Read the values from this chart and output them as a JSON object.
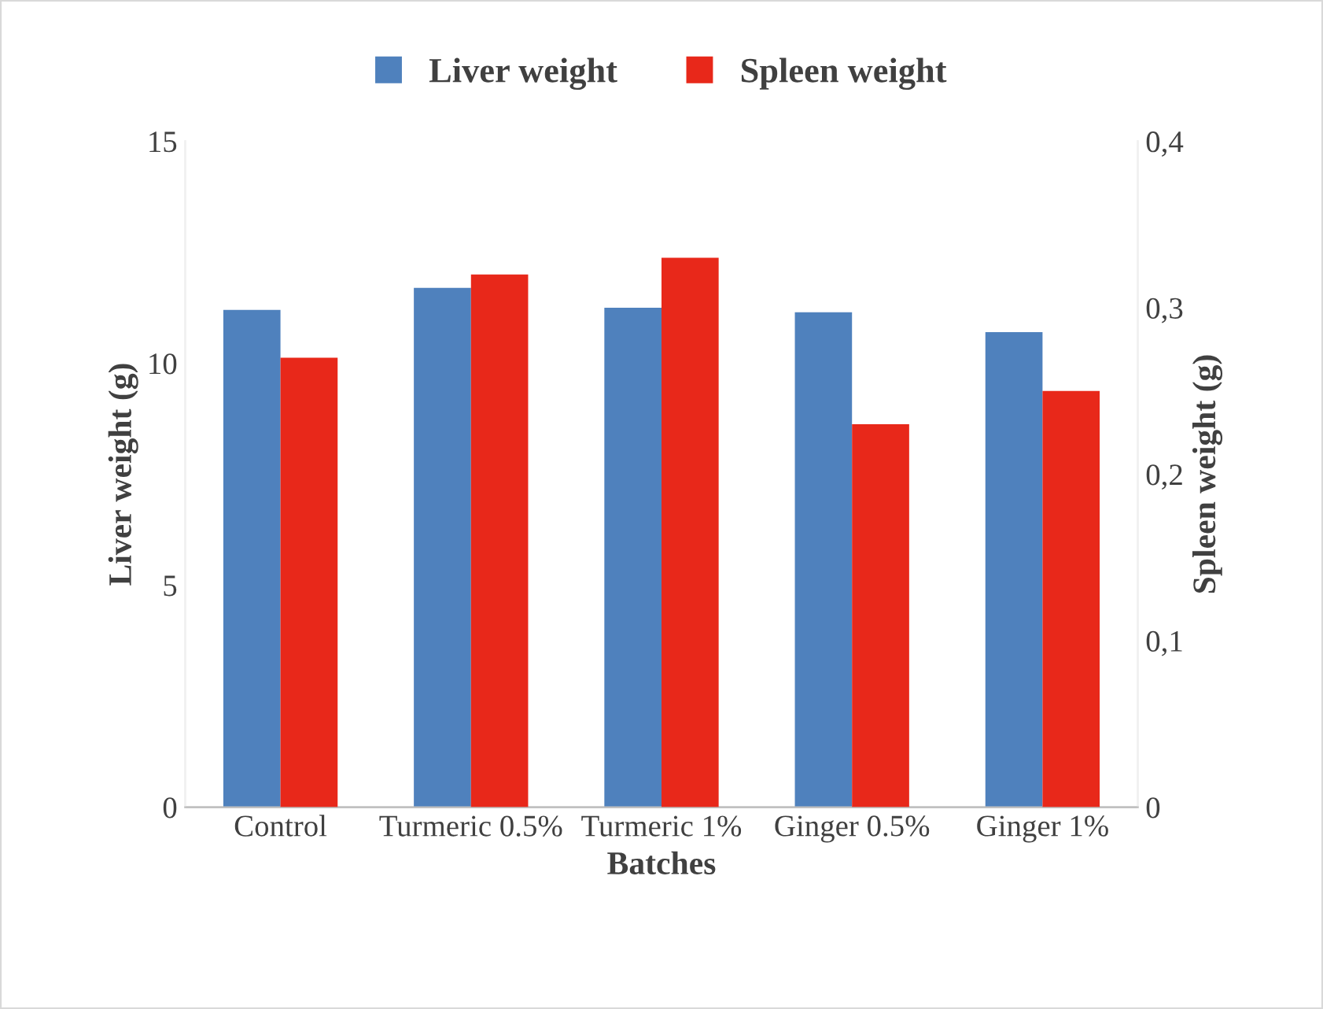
{
  "chart_data": {
    "type": "bar",
    "xlabel": "Batches",
    "ylabel": "Liver weight (g)",
    "y2label": "Spleen weight (g)",
    "categories": [
      "Control",
      "Turmeric 0.5%",
      "Turmeric 1%",
      "Ginger 0.5%",
      "Ginger 1%"
    ],
    "series": [
      {
        "name": "Liver weight",
        "color": "#4f81bd",
        "values": [
          11.2,
          11.7,
          11.25,
          11.15,
          10.7
        ]
      },
      {
        "name": "Spleen weight",
        "color": "#e8281a",
        "axis": "y2",
        "values": [
          0.27,
          0.32,
          0.33,
          0.23,
          0.25
        ]
      }
    ],
    "ylim": [
      0,
      15
    ],
    "yticks": [
      0,
      5,
      10,
      15
    ],
    "y2lim": [
      0,
      0.4
    ],
    "y2ticks": [
      {
        "value": 0,
        "label": "0"
      },
      {
        "value": 0.1,
        "label": "0,1"
      },
      {
        "value": 0.2,
        "label": "0,2"
      },
      {
        "value": 0.3,
        "label": "0,3"
      },
      {
        "value": 0.4,
        "label": "0,4"
      }
    ],
    "grid": false,
    "legend": "top"
  }
}
